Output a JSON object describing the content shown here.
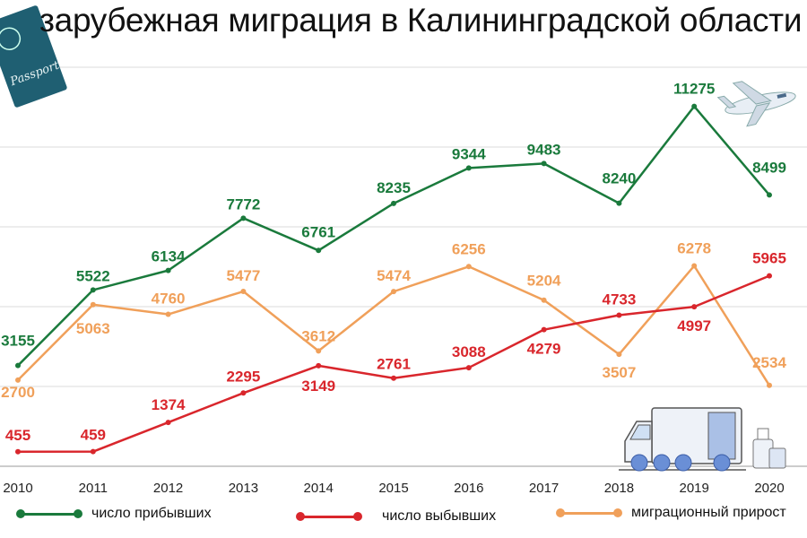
{
  "title": "зарубежная миграция в Калининградской области",
  "icons": [
    "passport-icon",
    "airplane-icon",
    "truck-icon",
    "luggage-icon"
  ],
  "passport_text": "Passport",
  "chart_data": {
    "type": "line",
    "title": "зарубежная миграция в Калининградской области",
    "x": [
      "2010",
      "2011",
      "2012",
      "2013",
      "2014",
      "2015",
      "2016",
      "2017",
      "2018",
      "2019",
      "2020"
    ],
    "ylim": [
      0,
      12500
    ],
    "grid": true,
    "legend_position": "bottom",
    "series": [
      {
        "name": "число прибывших",
        "color": "#1a7a3c",
        "values": [
          3155,
          5522,
          6134,
          7772,
          6761,
          8235,
          9344,
          9483,
          8240,
          11275,
          8499
        ]
      },
      {
        "name": "число выбывших",
        "color": "#d9262c",
        "values": [
          455,
          459,
          1374,
          2295,
          3149,
          2761,
          3088,
          4279,
          4733,
          4997,
          5965
        ]
      },
      {
        "name": "миграционный прирост",
        "color": "#f0a05a",
        "values": [
          2700,
          5063,
          4760,
          5477,
          3612,
          5474,
          6256,
          5204,
          3507,
          6278,
          2534
        ]
      }
    ]
  }
}
